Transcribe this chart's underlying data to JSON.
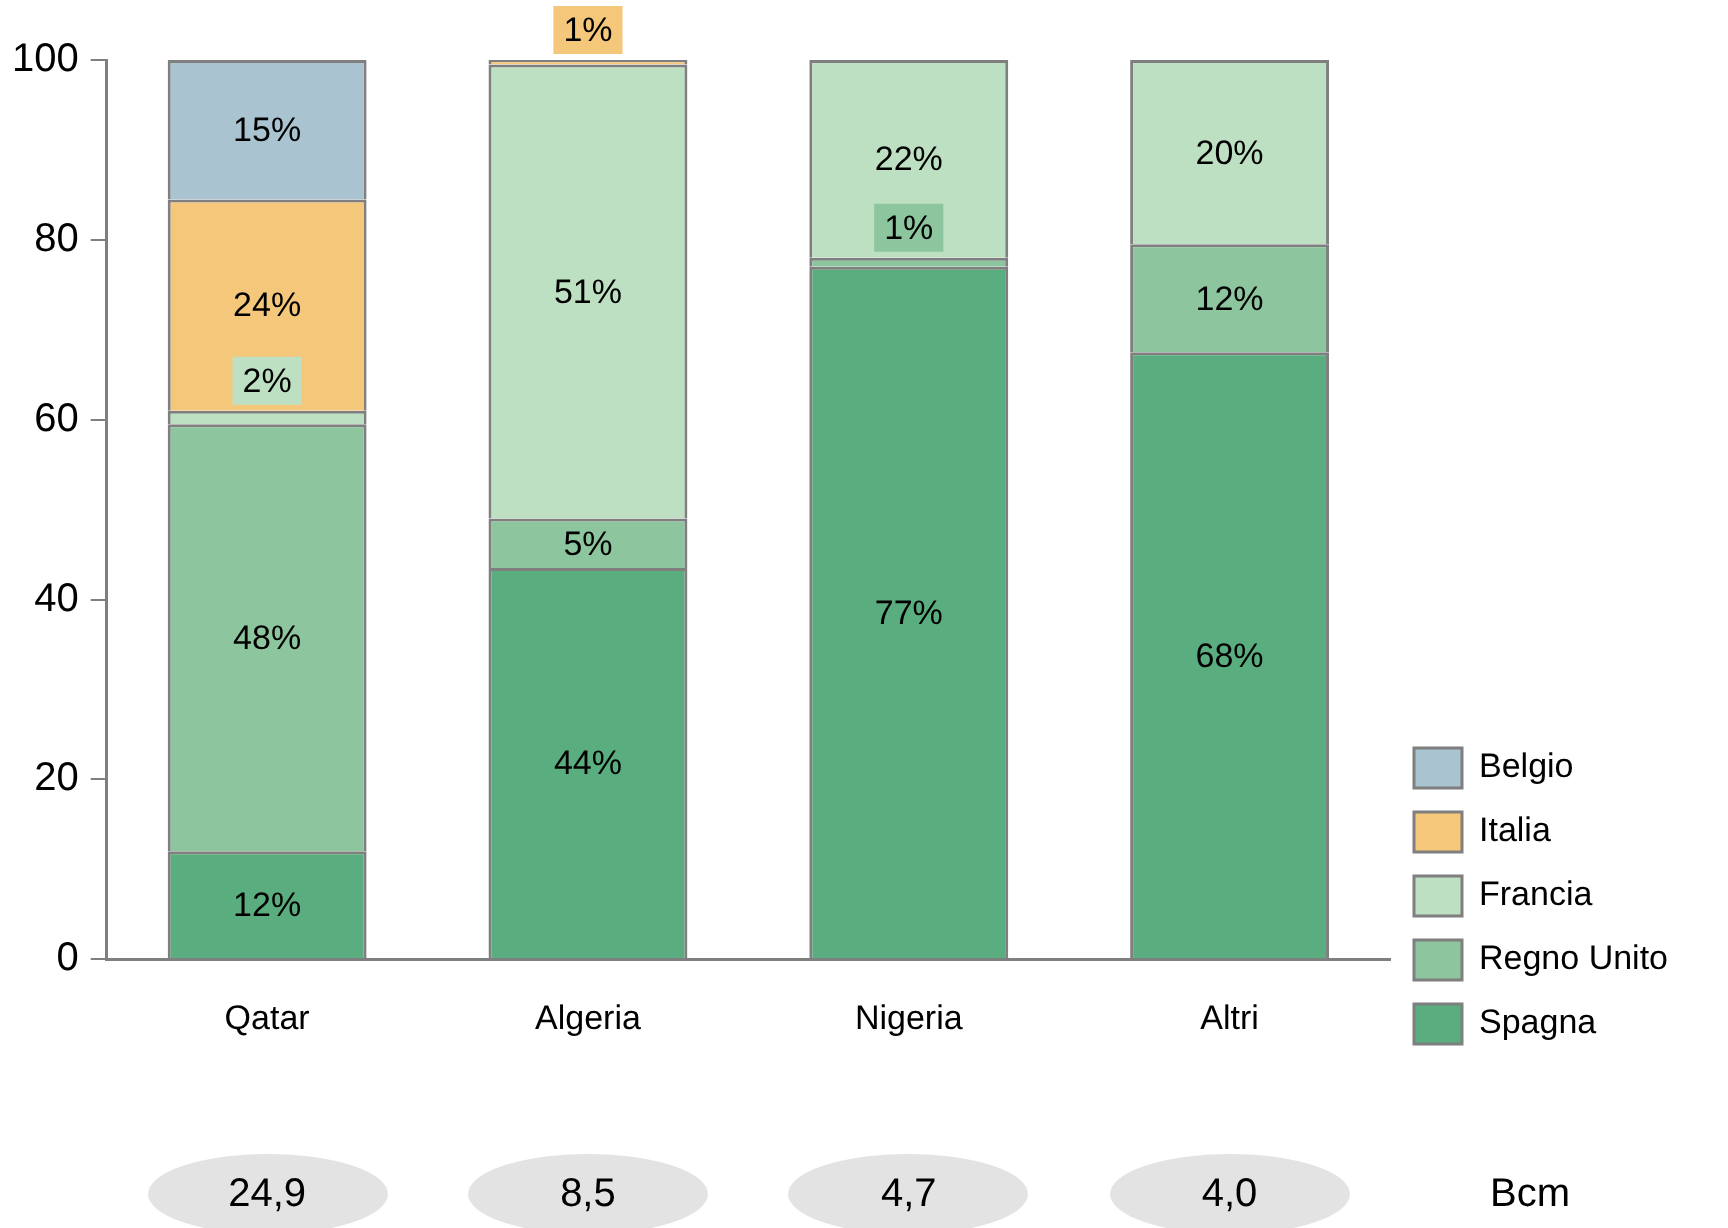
{
  "chart_data": {
    "type": "bar",
    "stacked": true,
    "categories": [
      "Qatar",
      "Algeria",
      "Nigeria",
      "Altri"
    ],
    "series": [
      {
        "name": "Spagna",
        "color": "#5aad7e",
        "values": [
          12,
          43.5,
          77,
          67.5
        ],
        "value_labels": [
          "12%",
          "44%",
          "77%",
          "68%"
        ]
      },
      {
        "name": "Regno Unito",
        "color": "#8cc59e",
        "values": [
          47.5,
          5.5,
          1,
          12
        ],
        "value_labels": [
          "48%",
          "5%",
          "1%",
          "12%"
        ]
      },
      {
        "name": "Francia",
        "color": "#bde0c3",
        "values": [
          1.5,
          50.5,
          22,
          20.5
        ],
        "value_labels": [
          "2%",
          "51%",
          "22%",
          "20%"
        ]
      },
      {
        "name": "Italia",
        "color": "#f5c77a",
        "values": [
          23.5,
          0.5,
          null,
          null
        ],
        "value_labels": [
          "24%",
          "1%",
          null,
          null
        ]
      },
      {
        "name": "Belgio",
        "color": "#a9c4d0",
        "values": [
          15.5,
          null,
          null,
          null
        ],
        "value_labels": [
          "15%",
          null,
          null,
          null
        ]
      }
    ],
    "ylim": [
      0,
      100
    ],
    "yticks": [
      0,
      20,
      40,
      60,
      80,
      100
    ],
    "grid": false,
    "legend": "bottom right",
    "annotations": [
      "24,9",
      "8,5",
      "4,7",
      "4,0",
      "Bcm"
    ]
  }
}
